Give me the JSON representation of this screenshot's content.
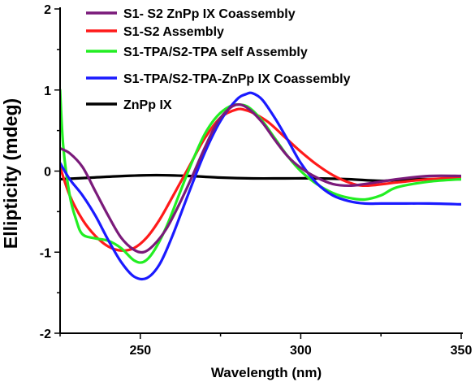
{
  "chart_data": {
    "type": "line",
    "title": "",
    "xlabel": "Wavelength  (nm)",
    "ylabel": "Ellipticity (mdeg)",
    "xlim": [
      225,
      350
    ],
    "ylim": [
      -2,
      2
    ],
    "xticks": [
      250,
      300,
      350
    ],
    "yticks": [
      -2,
      -1,
      0,
      1,
      2
    ],
    "grid": false,
    "legend_position": "top-right",
    "series": [
      {
        "name": "S1- S2 ZnPp IX Coassembly",
        "color": "#7a1a7a",
        "x": [
          225,
          228,
          232,
          236,
          240,
          244,
          248,
          251,
          254,
          258,
          262,
          266,
          270,
          274,
          278,
          281,
          284,
          288,
          292,
          296,
          300,
          305,
          310,
          315,
          320,
          330,
          340,
          350
        ],
        "y": [
          0.28,
          0.22,
          0.05,
          -0.25,
          -0.55,
          -0.82,
          -0.97,
          -1.0,
          -0.92,
          -0.72,
          -0.42,
          -0.08,
          0.28,
          0.6,
          0.78,
          0.82,
          0.76,
          0.6,
          0.38,
          0.18,
          0.04,
          -0.08,
          -0.16,
          -0.18,
          -0.16,
          -0.1,
          -0.06,
          -0.06
        ]
      },
      {
        "name": "S1-S2 Assembly",
        "color": "#ff1a1a",
        "x": [
          225,
          228,
          232,
          236,
          240,
          244,
          248,
          252,
          256,
          260,
          265,
          270,
          275,
          280,
          283,
          286,
          290,
          295,
          300,
          305,
          310,
          315,
          320,
          330,
          340,
          350
        ],
        "y": [
          0.05,
          -0.3,
          -0.6,
          -0.8,
          -0.93,
          -0.98,
          -0.95,
          -0.82,
          -0.6,
          -0.32,
          0.04,
          0.4,
          0.66,
          0.76,
          0.75,
          0.7,
          0.6,
          0.42,
          0.24,
          0.08,
          -0.05,
          -0.14,
          -0.18,
          -0.14,
          -0.1,
          -0.08
        ]
      },
      {
        "name": "S1-TPA/S2-TPA self  Assembly",
        "color": "#22ee22",
        "x": [
          225,
          226,
          228,
          230,
          232,
          236,
          240,
          244,
          248,
          251,
          254,
          258,
          262,
          266,
          270,
          274,
          278,
          281,
          284,
          288,
          292,
          296,
          300,
          305,
          310,
          315,
          320,
          325,
          330,
          340,
          350
        ],
        "y": [
          1.0,
          0.3,
          -0.3,
          -0.6,
          -0.78,
          -0.83,
          -0.86,
          -0.95,
          -1.1,
          -1.12,
          -1.0,
          -0.7,
          -0.3,
          0.1,
          0.45,
          0.68,
          0.8,
          0.82,
          0.78,
          0.62,
          0.4,
          0.18,
          0.0,
          -0.16,
          -0.27,
          -0.33,
          -0.35,
          -0.3,
          -0.2,
          -0.13,
          -0.1
        ]
      },
      {
        "name": "S1-TPA/S2-TPA-ZnPp IX Coassembly",
        "color": "#1a1aff",
        "x": [
          225,
          228,
          232,
          236,
          240,
          244,
          248,
          252,
          256,
          260,
          265,
          270,
          275,
          280,
          283,
          285,
          288,
          292,
          296,
          300,
          305,
          310,
          315,
          320,
          325,
          330,
          340,
          350
        ],
        "y": [
          0.1,
          -0.1,
          -0.3,
          -0.55,
          -0.85,
          -1.12,
          -1.3,
          -1.32,
          -1.15,
          -0.8,
          -0.28,
          0.22,
          0.62,
          0.88,
          0.95,
          0.96,
          0.88,
          0.65,
          0.38,
          0.1,
          -0.15,
          -0.3,
          -0.37,
          -0.4,
          -0.4,
          -0.4,
          -0.4,
          -0.41
        ]
      },
      {
        "name": "ZnPp IX",
        "color": "#000000",
        "x": [
          225,
          235,
          245,
          255,
          265,
          275,
          285,
          295,
          305,
          315,
          325,
          335,
          350
        ],
        "y": [
          -0.1,
          -0.08,
          -0.06,
          -0.05,
          -0.06,
          -0.08,
          -0.09,
          -0.09,
          -0.09,
          -0.1,
          -0.12,
          -0.1,
          -0.1
        ]
      }
    ]
  }
}
